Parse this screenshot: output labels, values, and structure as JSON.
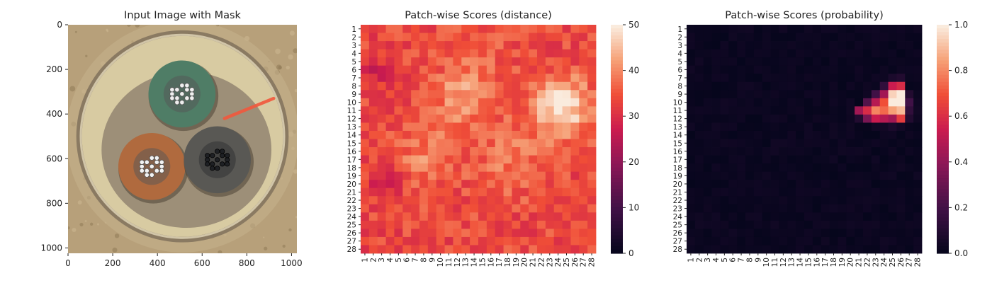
{
  "chart_data": [
    {
      "type": "image",
      "title": "Input Image with Mask",
      "xticks": [
        "0",
        "200",
        "400",
        "600",
        "800",
        "1000"
      ],
      "yticks": [
        "0",
        "200",
        "400",
        "600",
        "800",
        "1000"
      ],
      "xlim": [
        0,
        1024
      ],
      "ylim": [
        0,
        1024
      ],
      "image": {
        "background": "#b7a07a",
        "outer_ring": "#8a7a62",
        "disc": "#d8cba2",
        "inner_pool": "#9d8f78",
        "cables": [
          {
            "name": "top",
            "center": [
              510,
              310
            ],
            "radius": 150,
            "fill": "#4f7d66",
            "strand_color": "#eeeeee"
          },
          {
            "name": "left",
            "center": [
              375,
              635
            ],
            "radius": 150,
            "fill": "#b06a3e",
            "strand_color": "#f2f2f2"
          },
          {
            "name": "right",
            "center": [
              668,
              605
            ],
            "radius": 150,
            "fill": "#595854",
            "strand_color": "#1e2024"
          }
        ],
        "mask": {
          "from": [
            700,
            420
          ],
          "to": [
            920,
            330
          ],
          "color": "#f2583d"
        }
      }
    },
    {
      "type": "heatmap",
      "title": "Patch-wise Scores (distance)",
      "rows": 28,
      "cols": 28,
      "xticks": [
        "1",
        "2",
        "3",
        "4",
        "5",
        "6",
        "7",
        "8",
        "9",
        "10",
        "11",
        "12",
        "13",
        "14",
        "15",
        "16",
        "17",
        "18",
        "19",
        "20",
        "21",
        "22",
        "23",
        "24",
        "25",
        "26",
        "27",
        "28"
      ],
      "yticks": [
        "1",
        "2",
        "3",
        "4",
        "5",
        "6",
        "7",
        "8",
        "9",
        "10",
        "11",
        "12",
        "13",
        "14",
        "15",
        "16",
        "17",
        "18",
        "19",
        "20",
        "21",
        "22",
        "23",
        "24",
        "25",
        "26",
        "27",
        "28"
      ],
      "colorbar": {
        "min": 0,
        "max": 50,
        "ticks": [
          "0",
          "10",
          "20",
          "30",
          "40",
          "50"
        ]
      },
      "base": 34,
      "blobs": [
        {
          "row": 9.5,
          "col": 12.5,
          "amp": 7,
          "sigma": 2.2
        },
        {
          "row": 10.5,
          "col": 24.5,
          "amp": 16,
          "sigma": 2.4
        },
        {
          "row": 16.5,
          "col": 8.5,
          "amp": 6,
          "sigma": 2.5
        },
        {
          "row": 17,
          "col": 18.5,
          "amp": 5,
          "sigma": 3
        },
        {
          "row": 6.5,
          "col": 14,
          "amp": 3,
          "sigma": 3.5
        },
        {
          "row": 6,
          "col": 2.5,
          "amp": -5,
          "sigma": 1.5
        },
        {
          "row": 19.5,
          "col": 3.5,
          "amp": -5,
          "sigma": 1.4
        }
      ]
    },
    {
      "type": "heatmap",
      "title": "Patch-wise Scores (probability)",
      "rows": 28,
      "cols": 28,
      "xticks": [
        "1",
        "2",
        "3",
        "4",
        "5",
        "6",
        "7",
        "8",
        "9",
        "10",
        "11",
        "12",
        "13",
        "14",
        "15",
        "16",
        "17",
        "18",
        "19",
        "20",
        "21",
        "22",
        "23",
        "24",
        "25",
        "26",
        "27",
        "28"
      ],
      "yticks": [
        "1",
        "2",
        "3",
        "4",
        "5",
        "6",
        "7",
        "8",
        "9",
        "10",
        "11",
        "12",
        "13",
        "14",
        "15",
        "16",
        "17",
        "18",
        "19",
        "20",
        "21",
        "22",
        "23",
        "24",
        "25",
        "26",
        "27",
        "28"
      ],
      "colorbar": {
        "min": 0,
        "max": 1,
        "ticks": [
          "0.0",
          "0.2",
          "0.4",
          "0.6",
          "0.8",
          "1.0"
        ]
      },
      "base": 0.01,
      "cells": [
        {
          "row": 8,
          "col": 24,
          "value": 0.15
        },
        {
          "row": 8,
          "col": 25,
          "value": 0.55
        },
        {
          "row": 8,
          "col": 26,
          "value": 0.6
        },
        {
          "row": 9,
          "col": 23,
          "value": 0.2
        },
        {
          "row": 9,
          "col": 24,
          "value": 0.45
        },
        {
          "row": 9,
          "col": 25,
          "value": 0.95
        },
        {
          "row": 9,
          "col": 26,
          "value": 1.0
        },
        {
          "row": 9,
          "col": 27,
          "value": 0.1
        },
        {
          "row": 10,
          "col": 22,
          "value": 0.25
        },
        {
          "row": 10,
          "col": 23,
          "value": 0.5
        },
        {
          "row": 10,
          "col": 24,
          "value": 0.7
        },
        {
          "row": 10,
          "col": 25,
          "value": 1.0
        },
        {
          "row": 10,
          "col": 26,
          "value": 1.0
        },
        {
          "row": 10,
          "col": 27,
          "value": 0.2
        },
        {
          "row": 11,
          "col": 21,
          "value": 0.45
        },
        {
          "row": 11,
          "col": 22,
          "value": 0.6
        },
        {
          "row": 11,
          "col": 23,
          "value": 0.8
        },
        {
          "row": 11,
          "col": 24,
          "value": 0.75
        },
        {
          "row": 11,
          "col": 25,
          "value": 0.85
        },
        {
          "row": 11,
          "col": 26,
          "value": 0.9
        },
        {
          "row": 11,
          "col": 27,
          "value": 0.15
        },
        {
          "row": 12,
          "col": 21,
          "value": 0.1
        },
        {
          "row": 12,
          "col": 22,
          "value": 0.35
        },
        {
          "row": 12,
          "col": 23,
          "value": 0.55
        },
        {
          "row": 12,
          "col": 24,
          "value": 0.5
        },
        {
          "row": 12,
          "col": 25,
          "value": 0.45
        },
        {
          "row": 12,
          "col": 26,
          "value": 0.65
        },
        {
          "row": 12,
          "col": 27,
          "value": 0.1
        },
        {
          "row": 13,
          "col": 24,
          "value": 0.05
        },
        {
          "row": 13,
          "col": 25,
          "value": 0.08
        },
        {
          "row": 13,
          "col": 26,
          "value": 0.05
        },
        {
          "row": 7,
          "col": 25,
          "value": 0.08
        },
        {
          "row": 7,
          "col": 26,
          "value": 0.1
        }
      ]
    }
  ]
}
